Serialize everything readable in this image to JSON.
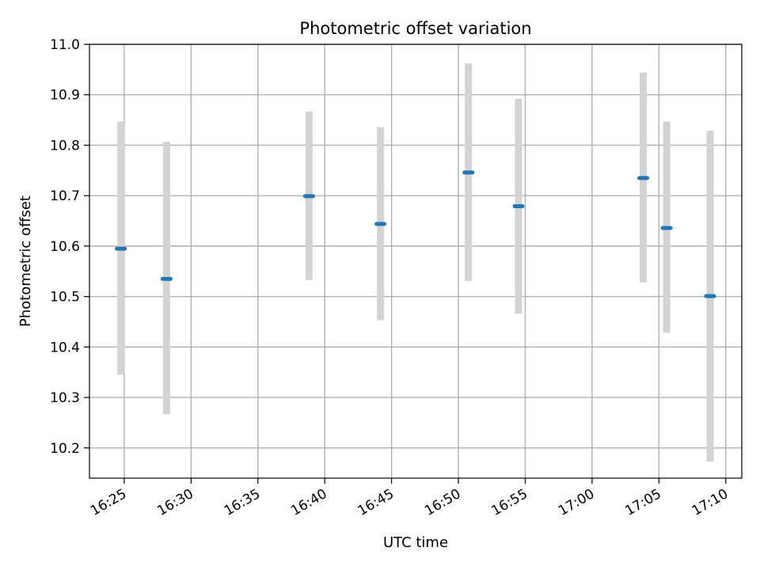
{
  "chart_data": {
    "type": "scatter",
    "title": "Photometric offset variation",
    "xlabel": "UTC time",
    "ylabel": "Photometric offset",
    "grid": true,
    "legend": "none",
    "colors": {
      "point": "#1f77b4",
      "errorbar": "#d3d3d3",
      "grid": "#b0b0b0",
      "axis": "#000000"
    },
    "x_unit": "minutes since 16:00 UTC",
    "xlim": [
      22.4,
      71.2
    ],
    "ylim": [
      10.14,
      11.0
    ],
    "x_ticks": [
      {
        "value": 25,
        "label": "16:25"
      },
      {
        "value": 30,
        "label": "16:30"
      },
      {
        "value": 35,
        "label": "16:35"
      },
      {
        "value": 40,
        "label": "16:40"
      },
      {
        "value": 45,
        "label": "16:45"
      },
      {
        "value": 50,
        "label": "16:50"
      },
      {
        "value": 55,
        "label": "16:55"
      },
      {
        "value": 60,
        "label": "17:00"
      },
      {
        "value": 65,
        "label": "17:05"
      },
      {
        "value": 70,
        "label": "17:10"
      }
    ],
    "y_ticks": [
      {
        "value": 10.2,
        "label": "10.2"
      },
      {
        "value": 10.3,
        "label": "10.3"
      },
      {
        "value": 10.4,
        "label": "10.4"
      },
      {
        "value": 10.5,
        "label": "10.5"
      },
      {
        "value": 10.6,
        "label": "10.6"
      },
      {
        "value": 10.7,
        "label": "10.7"
      },
      {
        "value": 10.8,
        "label": "10.8"
      },
      {
        "value": 10.9,
        "label": "10.9"
      },
      {
        "value": 11.0,
        "label": "11.0"
      }
    ],
    "points": [
      {
        "time": "16:24:45",
        "x": 24.75,
        "y": 10.595,
        "yerr_low": 10.345,
        "yerr_high": 10.847
      },
      {
        "time": "16:28:10",
        "x": 28.17,
        "y": 10.535,
        "yerr_low": 10.267,
        "yerr_high": 10.807
      },
      {
        "time": "16:38:50",
        "x": 38.83,
        "y": 10.699,
        "yerr_low": 10.533,
        "yerr_high": 10.867
      },
      {
        "time": "16:44:10",
        "x": 44.17,
        "y": 10.644,
        "yerr_low": 10.453,
        "yerr_high": 10.836
      },
      {
        "time": "16:50:45",
        "x": 50.75,
        "y": 10.746,
        "yerr_low": 10.531,
        "yerr_high": 10.962
      },
      {
        "time": "16:54:30",
        "x": 54.5,
        "y": 10.679,
        "yerr_low": 10.466,
        "yerr_high": 10.892
      },
      {
        "time": "17:03:50",
        "x": 63.83,
        "y": 10.735,
        "yerr_low": 10.528,
        "yerr_high": 10.944
      },
      {
        "time": "17:05:35",
        "x": 65.58,
        "y": 10.636,
        "yerr_low": 10.428,
        "yerr_high": 10.847
      },
      {
        "time": "17:08:50",
        "x": 68.83,
        "y": 10.501,
        "yerr_low": 10.173,
        "yerr_high": 10.829
      }
    ]
  }
}
